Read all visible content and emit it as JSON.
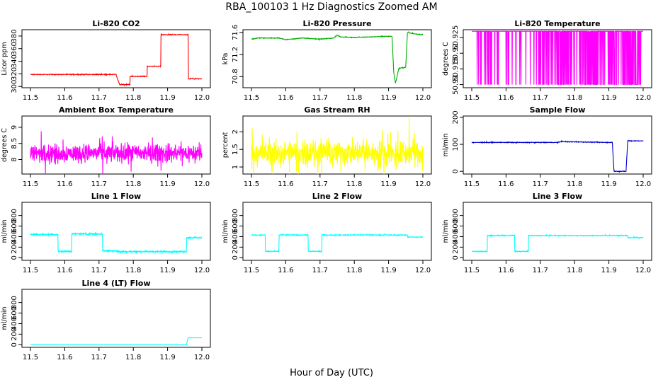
{
  "figure": {
    "title": "RBA_100103  1 Hz Diagnostics Zoomed AM",
    "xlabel": "Hour of Day (UTC)"
  },
  "chart_data": [
    {
      "type": "line",
      "title": "Li-820 CO2",
      "ylabel": "Licor ppm",
      "xlim": [
        11.5,
        12.0
      ],
      "ylim": [
        298,
        390
      ],
      "xticks": [
        11.5,
        11.6,
        11.7,
        11.8,
        11.9,
        12.0
      ],
      "yticks": [
        300,
        320,
        340,
        360,
        380
      ],
      "color": "#ff0000",
      "noise": 0.6,
      "series": [
        {
          "x": [
            11.5,
            11.75,
            11.75,
            11.76,
            11.76,
            11.79,
            11.79,
            11.84,
            11.84,
            11.88,
            11.88,
            11.96,
            11.96,
            12.0
          ],
          "y": [
            319,
            319,
            318,
            303,
            303,
            303,
            316,
            316,
            332,
            332,
            382,
            382,
            312,
            312
          ]
        }
      ]
    },
    {
      "type": "line",
      "title": "Li-820 Pressure",
      "ylabel": "kPa",
      "xlim": [
        11.5,
        12.0
      ],
      "ylim": [
        70.6,
        71.65
      ],
      "xticks": [
        11.5,
        11.6,
        11.7,
        11.8,
        11.9,
        12.0
      ],
      "yticks": [
        70.8,
        71.2,
        71.6
      ],
      "color": "#00b000",
      "noise": 0.006,
      "series": [
        {
          "x": [
            11.5,
            11.52,
            11.58,
            11.6,
            11.65,
            11.7,
            11.74,
            11.75,
            11.76,
            11.8,
            11.85,
            11.89,
            11.91,
            11.915,
            11.92,
            11.93,
            11.95,
            11.955,
            11.97,
            12.0
          ],
          "y": [
            71.48,
            71.5,
            71.5,
            71.47,
            71.5,
            71.48,
            71.5,
            71.55,
            71.52,
            71.51,
            71.52,
            71.53,
            71.53,
            70.88,
            70.68,
            70.95,
            70.97,
            71.6,
            71.58,
            71.56
          ]
        }
      ]
    },
    {
      "type": "line",
      "title": "Li-820 Temperature",
      "ylabel": "degrees C",
      "xlim": [
        11.5,
        12.0
      ],
      "ylim": [
        50.909,
        50.9275
      ],
      "xticks": [
        11.5,
        11.6,
        11.7,
        11.8,
        11.9,
        12.0
      ],
      "yticks": [
        50.91,
        50.915,
        50.92,
        50.925
      ],
      "color": "#ff00ff",
      "binary": [
        50.91,
        50.927
      ],
      "series": [
        {
          "x": [
            11.5,
            12.0
          ],
          "y": [
            50.927,
            50.927
          ]
        }
      ]
    },
    {
      "type": "line",
      "title": "Ambient Box Temperature",
      "ylabel": "degrees C",
      "xlim": [
        11.5,
        12.0
      ],
      "ylim": [
        7.55,
        9.35
      ],
      "xticks": [
        11.5,
        11.6,
        11.7,
        11.8,
        11.9,
        12.0
      ],
      "yticks": [
        8.0,
        8.5,
        9.0
      ],
      "color": "#ff00ff",
      "noise": 0.28,
      "series": [
        {
          "x": [
            11.5,
            12.0
          ],
          "y": [
            8.2,
            8.2
          ]
        }
      ]
    },
    {
      "type": "line",
      "title": "Gas Stream RH",
      "ylabel": "percent",
      "xlim": [
        11.5,
        12.0
      ],
      "ylim": [
        0.8,
        2.45
      ],
      "xticks": [
        11.5,
        11.6,
        11.7,
        11.8,
        11.9,
        12.0
      ],
      "yticks": [
        1.0,
        1.5,
        2.0
      ],
      "color": "#ffff00",
      "noise": 0.35,
      "series": [
        {
          "x": [
            11.5,
            12.0
          ],
          "y": [
            1.4,
            1.4
          ]
        }
      ]
    },
    {
      "type": "line",
      "title": "Sample Flow",
      "ylabel": "ml/min",
      "xlim": [
        11.5,
        12.0
      ],
      "ylim": [
        -10,
        205
      ],
      "xticks": [
        11.5,
        11.6,
        11.7,
        11.8,
        11.9,
        12.0
      ],
      "yticks": [
        0,
        100,
        200
      ],
      "color": "#0000cc",
      "noise": 1.2,
      "series": [
        {
          "x": [
            11.5,
            11.75,
            11.76,
            11.9,
            11.91,
            11.915,
            11.95,
            11.955,
            12.0
          ],
          "y": [
            107,
            107,
            110,
            107,
            107,
            0,
            0,
            113,
            113
          ]
        }
      ]
    },
    {
      "type": "line",
      "title": "Line 1 Flow",
      "ylabel": "ml/min",
      "xlim": [
        11.5,
        12.0
      ],
      "ylim": [
        -50,
        1050
      ],
      "xticks": [
        11.5,
        11.6,
        11.7,
        11.8,
        11.9,
        12.0
      ],
      "yticks": [
        0,
        200,
        400,
        600,
        800
      ],
      "color": "#00ffff",
      "noise": 15,
      "series": [
        {
          "x": [
            11.5,
            11.58,
            11.58,
            11.62,
            11.62,
            11.71,
            11.71,
            11.75,
            11.75,
            11.955,
            11.955,
            12.0
          ],
          "y": [
            440,
            440,
            120,
            120,
            450,
            450,
            130,
            130,
            115,
            115,
            380,
            380
          ]
        }
      ]
    },
    {
      "type": "line",
      "title": "Line 2 Flow",
      "ylabel": "ml/min",
      "xlim": [
        11.5,
        12.0
      ],
      "ylim": [
        -50,
        1050
      ],
      "xticks": [
        11.5,
        11.6,
        11.7,
        11.8,
        11.9,
        12.0
      ],
      "yticks": [
        0,
        200,
        400,
        600,
        800
      ],
      "color": "#00ffff",
      "noise": 8,
      "series": [
        {
          "x": [
            11.5,
            11.54,
            11.54,
            11.58,
            11.58,
            11.665,
            11.665,
            11.705,
            11.705,
            11.955,
            11.955,
            12.0
          ],
          "y": [
            430,
            430,
            120,
            120,
            430,
            430,
            120,
            120,
            430,
            430,
            390,
            390
          ]
        }
      ]
    },
    {
      "type": "line",
      "title": "Line 3 Flow",
      "ylabel": "ml/min",
      "xlim": [
        11.5,
        12.0
      ],
      "ylim": [
        -50,
        1050
      ],
      "xticks": [
        11.5,
        11.6,
        11.7,
        11.8,
        11.9,
        12.0
      ],
      "yticks": [
        0,
        200,
        400,
        600,
        800
      ],
      "color": "#00ffff",
      "noise": 8,
      "series": [
        {
          "x": [
            11.5,
            11.545,
            11.545,
            11.625,
            11.625,
            11.665,
            11.665,
            11.955,
            11.955,
            12.0
          ],
          "y": [
            120,
            120,
            420,
            420,
            120,
            120,
            420,
            420,
            380,
            380
          ]
        }
      ]
    },
    {
      "type": "line",
      "title": "Line 4 (LT) Flow",
      "ylabel": "ml/min",
      "xlim": [
        11.5,
        12.0
      ],
      "ylim": [
        -50,
        1050
      ],
      "xticks": [
        11.5,
        11.6,
        11.7,
        11.8,
        11.9,
        12.0
      ],
      "yticks": [
        0,
        200,
        400,
        600,
        800
      ],
      "color": "#00ffff",
      "noise": 0,
      "series": [
        {
          "x": [
            11.5,
            11.955,
            11.96,
            12.0
          ],
          "y": [
            0,
            0,
            130,
            130
          ]
        }
      ]
    }
  ]
}
